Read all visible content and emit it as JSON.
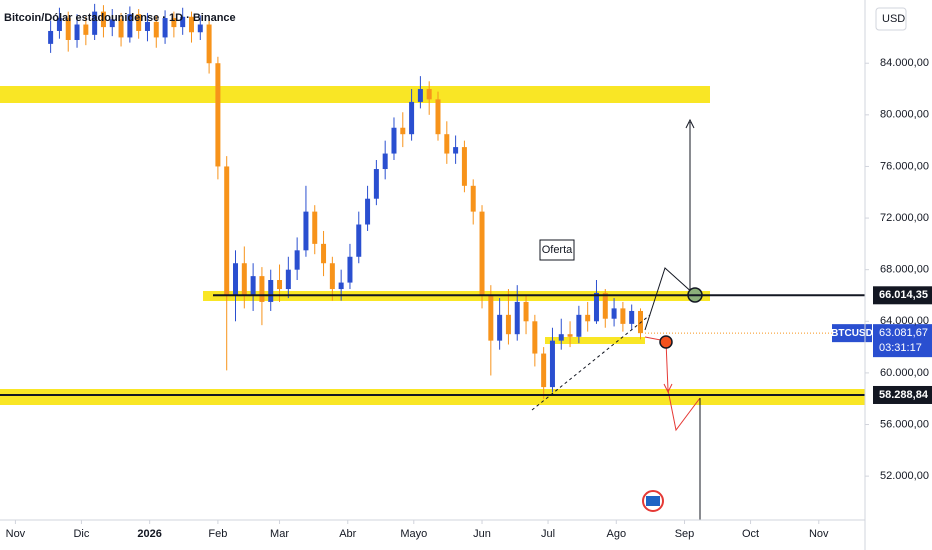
{
  "chart_data": {
    "type": "candlestick",
    "title": "Bitcoin/Dólar estadounidense · 1D · Binance",
    "currency": "USD",
    "annotation": "Oferta",
    "x": [
      16,
      20,
      24,
      28,
      32,
      36,
      40,
      44,
      48,
      52,
      56,
      60,
      64,
      68,
      72,
      76,
      80,
      84,
      88,
      92,
      96,
      100,
      104,
      108,
      112,
      116,
      120,
      124,
      128,
      132,
      136,
      140,
      144,
      148,
      152,
      156,
      160,
      164,
      168,
      172,
      176,
      180,
      184,
      188,
      192,
      196,
      200,
      204,
      208,
      212,
      216,
      220,
      224,
      228,
      232,
      236,
      240,
      244,
      248,
      252,
      256,
      260,
      264,
      268,
      272,
      276,
      280,
      284
    ],
    "series": [
      {
        "name": "BTCUSD",
        "up_color": "#2a4fd0",
        "down_color": "#f7931a",
        "open": [
          85500,
          86500,
          87500,
          85800,
          87000,
          86200,
          88000,
          86800,
          87400,
          86000,
          87800,
          86500,
          87200,
          86000,
          87500,
          86800,
          87600,
          86400,
          87000,
          84000,
          76000,
          66000,
          68500,
          66000,
          67500,
          65500,
          67200,
          66500,
          68000,
          69500,
          72500,
          70000,
          68500,
          66500,
          67000,
          69000,
          71500,
          73500,
          75800,
          77000,
          79000,
          78500,
          81000,
          82000,
          81200,
          78500,
          77000,
          77500,
          74500,
          72500,
          66000,
          62500,
          64500,
          63000,
          65500,
          64000,
          61500,
          58900,
          62500,
          63000,
          62800,
          64500,
          64000,
          66200,
          64200,
          65000,
          63800,
          64800
        ],
        "high": [
          87300,
          88300,
          88000,
          87800,
          87600,
          88600,
          88500,
          88200,
          87900,
          88400,
          88200,
          87900,
          87700,
          88100,
          88000,
          88300,
          88000,
          87700,
          87400,
          84500,
          76800,
          69500,
          69800,
          68500,
          68200,
          68000,
          68400,
          69000,
          70500,
          74500,
          73000,
          71000,
          69000,
          68000,
          70000,
          72500,
          74500,
          76500,
          78000,
          79800,
          80200,
          82000,
          83000,
          82600,
          81800,
          79500,
          78400,
          78000,
          75000,
          73000,
          66800,
          65800,
          66500,
          66800,
          66000,
          64500,
          62000,
          63500,
          64200,
          64000,
          65200,
          65500,
          67200,
          66500,
          65800,
          65500,
          65300,
          65000
        ],
        "low": [
          84800,
          85900,
          84900,
          85200,
          85400,
          85800,
          86000,
          86100,
          85300,
          85600,
          85900,
          85700,
          85200,
          85500,
          86000,
          86200,
          85600,
          85800,
          83200,
          75000,
          60200,
          64000,
          65000,
          64800,
          63700,
          64800,
          65500,
          65800,
          67200,
          69000,
          69200,
          67500,
          65600,
          65600,
          66500,
          68500,
          71000,
          73000,
          75000,
          76500,
          77500,
          78000,
          80500,
          80000,
          78000,
          76200,
          76200,
          74000,
          71500,
          65000,
          59800,
          61800,
          62200,
          62500,
          63000,
          60500,
          58000,
          58500,
          61800,
          62000,
          62300,
          63200,
          63800,
          63500,
          63600,
          63200,
          63300,
          62600
        ],
        "close": [
          86500,
          87500,
          85800,
          87000,
          86200,
          88000,
          86800,
          87400,
          86000,
          87800,
          86500,
          87200,
          86000,
          87500,
          86800,
          87600,
          86400,
          87000,
          84000,
          76000,
          66000,
          68500,
          66000,
          67500,
          65500,
          67200,
          66500,
          68000,
          69500,
          72500,
          70000,
          68500,
          66500,
          67000,
          69000,
          71500,
          73500,
          75800,
          77000,
          79000,
          78500,
          81000,
          82000,
          81200,
          78500,
          77000,
          77500,
          74500,
          72500,
          66000,
          62500,
          64500,
          63000,
          65500,
          64000,
          61500,
          58900,
          62500,
          63000,
          62800,
          64500,
          64000,
          66200,
          64200,
          65000,
          63800,
          64800,
          63081.67
        ]
      }
    ],
    "xlim": [
      -7,
      386
    ],
    "xticks": [
      {
        "value": 0,
        "label": "Nov"
      },
      {
        "value": 30,
        "label": "Dic"
      },
      {
        "value": 61,
        "label": "2026"
      },
      {
        "value": 92,
        "label": "Feb"
      },
      {
        "value": 120,
        "label": "Mar"
      },
      {
        "value": 151,
        "label": "Abr"
      },
      {
        "value": 181,
        "label": "Mayo"
      },
      {
        "value": 212,
        "label": "Jun"
      },
      {
        "value": 242,
        "label": "Jul"
      },
      {
        "value": 273,
        "label": "Ago"
      },
      {
        "value": 304,
        "label": "Sep"
      },
      {
        "value": 334,
        "label": "Oct"
      },
      {
        "value": 365,
        "label": "Nov"
      }
    ],
    "ylim": [
      48600,
      88900
    ],
    "yticks": [
      {
        "value": 52000,
        "label": "52.000,00"
      },
      {
        "value": 56000,
        "label": "56.000,00"
      },
      {
        "value": 60000,
        "label": "60.000,00"
      },
      {
        "value": 64000,
        "label": "64.000,00"
      },
      {
        "value": 68000,
        "label": "68.000,00"
      },
      {
        "value": 72000,
        "label": "72.000,00"
      },
      {
        "value": 76000,
        "label": "76.000,00"
      },
      {
        "value": 80000,
        "label": "80.000,00"
      },
      {
        "value": 84000,
        "label": "84.000,00"
      }
    ],
    "levels": [
      {
        "value": 66014.35,
        "label": "66.014,35"
      },
      {
        "value": 58288.84,
        "label": "58.288,84"
      }
    ],
    "last_price": {
      "symbol": "BTCUSD",
      "value": 63081.67,
      "label": "63.081,67",
      "countdown": "03:31:17"
    }
  }
}
